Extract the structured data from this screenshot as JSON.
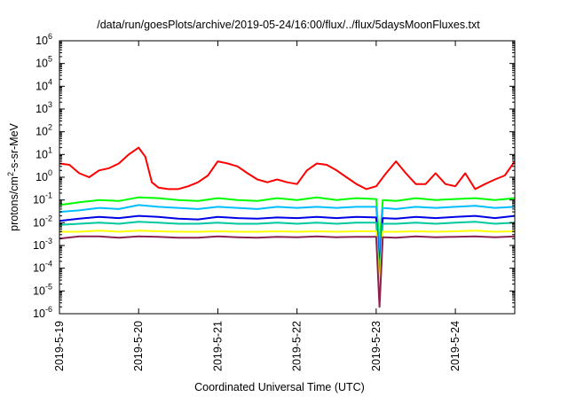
{
  "chart_data": {
    "type": "line",
    "title": "/data/run/goesPlots/archive/2019-05-24/16:00/flux/../flux/5daysMoonFluxes.txt",
    "xlabel": "Coordinated Universal Time (UTC)",
    "ylabel": {
      "pre": "protons/cm",
      "sup": "2",
      "post": "-s-sr-MeV"
    },
    "yscale": "log",
    "ylim": [
      1e-06,
      1000000.0
    ],
    "xlim": [
      "2019-05-19 00:00",
      "2019-05-24 18:00"
    ],
    "xticks": [
      "2019-5-19",
      "2019-5-20",
      "2019-5-21",
      "2019-5-22",
      "2019-5-23",
      "2019-5-24"
    ],
    "yticks": [
      {
        "base": "10",
        "exp": "-6"
      },
      {
        "base": "10",
        "exp": "-5"
      },
      {
        "base": "10",
        "exp": "-4"
      },
      {
        "base": "10",
        "exp": "-3"
      },
      {
        "base": "10",
        "exp": "-2"
      },
      {
        "base": "10",
        "exp": "-1"
      },
      {
        "base": "10",
        "exp": "0"
      },
      {
        "base": "10",
        "exp": "1"
      },
      {
        "base": "10",
        "exp": "2"
      },
      {
        "base": "10",
        "exp": "3"
      },
      {
        "base": "10",
        "exp": "4"
      },
      {
        "base": "10",
        "exp": "5"
      },
      {
        "base": "10",
        "exp": "6"
      }
    ],
    "grid": false,
    "series": [
      {
        "color": "#ff0000",
        "x": [
          "2019-05-19 00:00",
          "2019-05-19 03:00",
          "2019-05-19 06:00",
          "2019-05-19 09:00",
          "2019-05-19 12:00",
          "2019-05-19 15:00",
          "2019-05-19 18:00",
          "2019-05-19 21:00",
          "2019-05-20 00:00",
          "2019-05-20 02:00",
          "2019-05-20 04:00",
          "2019-05-20 06:00",
          "2019-05-20 09:00",
          "2019-05-20 12:00",
          "2019-05-20 15:00",
          "2019-05-20 18:00",
          "2019-05-20 21:00",
          "2019-05-21 00:00",
          "2019-05-21 03:00",
          "2019-05-21 06:00",
          "2019-05-21 09:00",
          "2019-05-21 12:00",
          "2019-05-21 15:00",
          "2019-05-21 18:00",
          "2019-05-21 21:00",
          "2019-05-22 00:00",
          "2019-05-22 03:00",
          "2019-05-22 06:00",
          "2019-05-22 09:00",
          "2019-05-22 12:00",
          "2019-05-22 15:00",
          "2019-05-22 18:00",
          "2019-05-22 21:00",
          "2019-05-23 00:00",
          "2019-05-23 03:00",
          "2019-05-23 06:00",
          "2019-05-23 09:00",
          "2019-05-23 12:00",
          "2019-05-23 15:00",
          "2019-05-23 18:00",
          "2019-05-23 21:00",
          "2019-05-24 00:00",
          "2019-05-24 03:00",
          "2019-05-24 06:00",
          "2019-05-24 09:00",
          "2019-05-24 12:00",
          "2019-05-24 15:00",
          "2019-05-24 18:00"
        ],
        "values": [
          4.0,
          3.5,
          1.5,
          1.0,
          2.0,
          2.5,
          4.0,
          10.0,
          20.0,
          8.0,
          0.6,
          0.35,
          0.3,
          0.3,
          0.4,
          0.6,
          1.2,
          5.0,
          4.0,
          3.0,
          1.5,
          0.8,
          0.6,
          0.8,
          0.6,
          0.5,
          2.0,
          4.0,
          3.5,
          2.0,
          1.0,
          0.5,
          0.3,
          0.4,
          1.5,
          5.0,
          1.5,
          0.5,
          0.5,
          1.5,
          0.5,
          0.4,
          1.5,
          0.3,
          0.5,
          0.8,
          1.2,
          5.0
        ]
      },
      {
        "color": "#00ff00",
        "x": [
          "2019-05-19 00:00",
          "2019-05-19 06:00",
          "2019-05-19 12:00",
          "2019-05-19 18:00",
          "2019-05-20 00:00",
          "2019-05-20 06:00",
          "2019-05-20 12:00",
          "2019-05-20 18:00",
          "2019-05-21 00:00",
          "2019-05-21 06:00",
          "2019-05-21 12:00",
          "2019-05-21 18:00",
          "2019-05-22 00:00",
          "2019-05-22 06:00",
          "2019-05-22 12:00",
          "2019-05-22 18:00",
          "2019-05-23 00:00",
          "2019-05-23 01:00",
          "2019-05-23 02:00",
          "2019-05-23 06:00",
          "2019-05-23 12:00",
          "2019-05-23 18:00",
          "2019-05-24 00:00",
          "2019-05-24 06:00",
          "2019-05-24 12:00",
          "2019-05-24 18:00"
        ],
        "values": [
          0.06,
          0.08,
          0.1,
          0.09,
          0.13,
          0.12,
          0.1,
          0.09,
          0.12,
          0.1,
          0.09,
          0.12,
          0.1,
          0.13,
          0.1,
          0.12,
          0.11,
          0.001,
          0.1,
          0.09,
          0.12,
          0.1,
          0.11,
          0.12,
          0.1,
          0.12
        ]
      },
      {
        "color": "#00bfff",
        "x": [
          "2019-05-19 00:00",
          "2019-05-19 06:00",
          "2019-05-19 12:00",
          "2019-05-19 18:00",
          "2019-05-20 00:00",
          "2019-05-20 06:00",
          "2019-05-20 12:00",
          "2019-05-20 18:00",
          "2019-05-21 00:00",
          "2019-05-21 06:00",
          "2019-05-21 12:00",
          "2019-05-21 18:00",
          "2019-05-22 00:00",
          "2019-05-22 06:00",
          "2019-05-22 12:00",
          "2019-05-22 18:00",
          "2019-05-23 00:00",
          "2019-05-23 01:00",
          "2019-05-23 02:00",
          "2019-05-23 06:00",
          "2019-05-23 12:00",
          "2019-05-23 18:00",
          "2019-05-24 00:00",
          "2019-05-24 06:00",
          "2019-05-24 12:00",
          "2019-05-24 18:00"
        ],
        "values": [
          0.03,
          0.035,
          0.045,
          0.04,
          0.06,
          0.05,
          0.045,
          0.04,
          0.05,
          0.045,
          0.04,
          0.05,
          0.045,
          0.05,
          0.045,
          0.05,
          0.05,
          0.0003,
          0.045,
          0.04,
          0.05,
          0.045,
          0.05,
          0.055,
          0.045,
          0.05
        ]
      },
      {
        "color": "#0000e6",
        "x": [
          "2019-05-19 00:00",
          "2019-05-19 06:00",
          "2019-05-19 12:00",
          "2019-05-19 18:00",
          "2019-05-20 00:00",
          "2019-05-20 06:00",
          "2019-05-20 12:00",
          "2019-05-20 18:00",
          "2019-05-21 00:00",
          "2019-05-21 06:00",
          "2019-05-21 12:00",
          "2019-05-21 18:00",
          "2019-05-22 00:00",
          "2019-05-22 06:00",
          "2019-05-22 12:00",
          "2019-05-22 18:00",
          "2019-05-23 00:00",
          "2019-05-23 01:00",
          "2019-05-23 02:00",
          "2019-05-23 06:00",
          "2019-05-23 12:00",
          "2019-05-23 18:00",
          "2019-05-24 00:00",
          "2019-05-24 06:00",
          "2019-05-24 12:00",
          "2019-05-24 18:00"
        ],
        "values": [
          0.012,
          0.015,
          0.018,
          0.016,
          0.02,
          0.018,
          0.015,
          0.014,
          0.018,
          0.016,
          0.015,
          0.017,
          0.016,
          0.018,
          0.016,
          0.018,
          0.017,
          0.0001,
          0.016,
          0.015,
          0.018,
          0.016,
          0.018,
          0.02,
          0.016,
          0.02
        ]
      },
      {
        "color": "#00c8a0",
        "x": [
          "2019-05-19 00:00",
          "2019-05-19 06:00",
          "2019-05-19 12:00",
          "2019-05-19 18:00",
          "2019-05-20 00:00",
          "2019-05-20 06:00",
          "2019-05-20 12:00",
          "2019-05-20 18:00",
          "2019-05-21 00:00",
          "2019-05-21 06:00",
          "2019-05-21 12:00",
          "2019-05-21 18:00",
          "2019-05-22 00:00",
          "2019-05-22 06:00",
          "2019-05-22 12:00",
          "2019-05-22 18:00",
          "2019-05-23 00:00",
          "2019-05-23 01:00",
          "2019-05-23 02:00",
          "2019-05-23 06:00",
          "2019-05-23 12:00",
          "2019-05-23 18:00",
          "2019-05-24 00:00",
          "2019-05-24 06:00",
          "2019-05-24 12:00",
          "2019-05-24 18:00"
        ],
        "values": [
          0.008,
          0.009,
          0.01,
          0.009,
          0.011,
          0.01,
          0.009,
          0.009,
          0.01,
          0.009,
          0.009,
          0.01,
          0.009,
          0.01,
          0.009,
          0.01,
          0.01,
          5e-05,
          0.009,
          0.009,
          0.01,
          0.009,
          0.01,
          0.011,
          0.009,
          0.01
        ]
      },
      {
        "color": "#ffff00",
        "x": [
          "2019-05-19 00:00",
          "2019-05-19 06:00",
          "2019-05-19 12:00",
          "2019-05-19 18:00",
          "2019-05-20 00:00",
          "2019-05-20 06:00",
          "2019-05-20 12:00",
          "2019-05-20 18:00",
          "2019-05-21 00:00",
          "2019-05-21 06:00",
          "2019-05-21 12:00",
          "2019-05-21 18:00",
          "2019-05-22 00:00",
          "2019-05-22 06:00",
          "2019-05-22 12:00",
          "2019-05-22 18:00",
          "2019-05-23 00:00",
          "2019-05-23 01:00",
          "2019-05-23 02:00",
          "2019-05-23 06:00",
          "2019-05-23 12:00",
          "2019-05-23 18:00",
          "2019-05-24 00:00",
          "2019-05-24 06:00",
          "2019-05-24 12:00",
          "2019-05-24 18:00"
        ],
        "values": [
          0.004,
          0.004,
          0.0045,
          0.004,
          0.0045,
          0.0042,
          0.004,
          0.004,
          0.0042,
          0.004,
          0.004,
          0.0042,
          0.004,
          0.0042,
          0.004,
          0.0042,
          0.0042,
          1e-05,
          0.004,
          0.004,
          0.0042,
          0.004,
          0.0042,
          0.0045,
          0.004,
          0.0042
        ]
      },
      {
        "color": "#8b2252",
        "x": [
          "2019-05-19 00:00",
          "2019-05-19 06:00",
          "2019-05-19 12:00",
          "2019-05-19 18:00",
          "2019-05-20 00:00",
          "2019-05-20 06:00",
          "2019-05-20 12:00",
          "2019-05-20 18:00",
          "2019-05-21 00:00",
          "2019-05-21 06:00",
          "2019-05-21 12:00",
          "2019-05-21 18:00",
          "2019-05-22 00:00",
          "2019-05-22 06:00",
          "2019-05-22 12:00",
          "2019-05-22 18:00",
          "2019-05-23 00:00",
          "2019-05-23 01:00",
          "2019-05-23 02:00",
          "2019-05-23 06:00",
          "2019-05-23 12:00",
          "2019-05-23 18:00",
          "2019-05-24 00:00",
          "2019-05-24 06:00",
          "2019-05-24 12:00",
          "2019-05-24 18:00"
        ],
        "values": [
          0.002,
          0.0025,
          0.0025,
          0.0022,
          0.0025,
          0.0024,
          0.0022,
          0.0022,
          0.0025,
          0.0023,
          0.0022,
          0.0024,
          0.0023,
          0.0025,
          0.0023,
          0.0024,
          0.0024,
          2e-06,
          0.0023,
          0.0022,
          0.0025,
          0.0023,
          0.0024,
          0.0025,
          0.0023,
          0.0025
        ]
      }
    ]
  }
}
